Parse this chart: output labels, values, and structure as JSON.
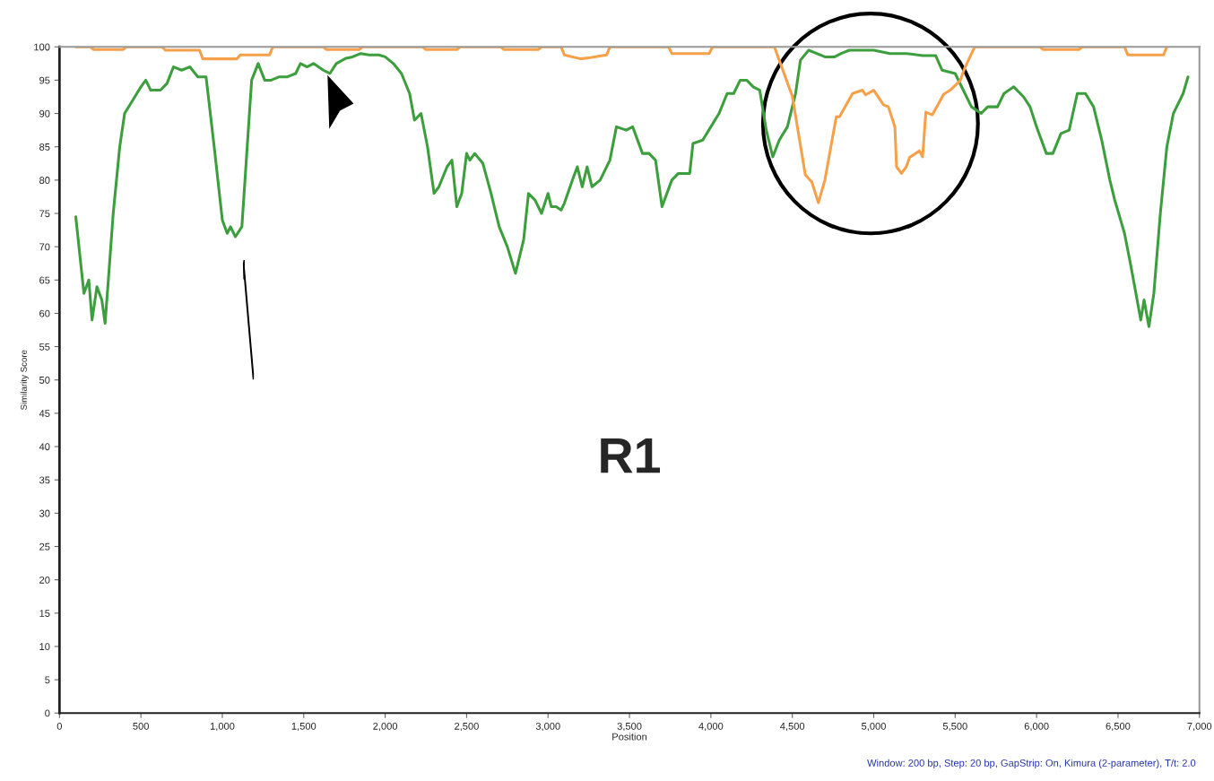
{
  "chart_data": {
    "type": "line",
    "xlabel": "Position",
    "ylabel": "Similarity Score",
    "xlim": [
      0,
      7000
    ],
    "ylim": [
      0,
      100
    ],
    "xticks": [
      0,
      500,
      {
        "value": 1000,
        "label": "1,000"
      },
      {
        "value": 1500,
        "label": "1,500"
      },
      {
        "value": 2000,
        "label": "2,000"
      },
      {
        "value": 2500,
        "label": "2,500"
      },
      {
        "value": 3000,
        "label": "3,000"
      },
      {
        "value": 3500,
        "label": "3,500"
      },
      {
        "value": 4000,
        "label": "4,000"
      },
      {
        "value": 4500,
        "label": "4,500"
      },
      {
        "value": 5000,
        "label": "5,000"
      },
      {
        "value": 5500,
        "label": "5,500"
      },
      {
        "value": 6000,
        "label": "6,000"
      },
      {
        "value": 6500,
        "label": "6,500"
      },
      {
        "value": 7000,
        "label": "7,000"
      }
    ],
    "yticks": [
      0,
      5,
      10,
      15,
      20,
      25,
      30,
      35,
      40,
      45,
      50,
      55,
      60,
      65,
      70,
      75,
      80,
      85,
      90,
      95,
      100
    ],
    "grid": false,
    "legend": false,
    "marker": "none",
    "line_style": "solid",
    "series": [
      {
        "color": "#3d9e3d",
        "x": [
          100,
          150,
          180,
          200,
          230,
          260,
          280,
          300,
          330,
          370,
          400,
          450,
          500,
          530,
          560,
          620,
          660,
          700,
          750,
          800,
          850,
          900,
          950,
          1000,
          1030,
          1050,
          1080,
          1120,
          1150,
          1180,
          1220,
          1260,
          1300,
          1350,
          1400,
          1450,
          1480,
          1520,
          1560,
          1620,
          1660,
          1700,
          1760,
          1800,
          1850,
          1900,
          1960,
          2000,
          2050,
          2100,
          2150,
          2180,
          2220,
          2260,
          2300,
          2330,
          2380,
          2410,
          2440,
          2470,
          2500,
          2520,
          2550,
          2600,
          2650,
          2700,
          2750,
          2800,
          2850,
          2880,
          2920,
          2960,
          3000,
          3020,
          3050,
          3080,
          3100,
          3150,
          3180,
          3210,
          3240,
          3270,
          3320,
          3380,
          3420,
          3480,
          3520,
          3580,
          3620,
          3660,
          3700,
          3760,
          3800,
          3870,
          3890,
          3950,
          4000,
          4050,
          4100,
          4140,
          4180,
          4220,
          4260,
          4300,
          4340,
          4380,
          4420,
          4470,
          4520,
          4550,
          4600,
          4650,
          4700,
          4760,
          4800,
          4850,
          4900,
          4960,
          5000,
          5100,
          5200,
          5300,
          5380,
          5420,
          5500,
          5560,
          5600,
          5660,
          5700,
          5760,
          5800,
          5860,
          5920,
          5960,
          6000,
          6060,
          6100,
          6150,
          6200,
          6250,
          6300,
          6350,
          6400,
          6450,
          6480,
          6540,
          6580,
          6610,
          6640,
          6660,
          6690,
          6720,
          6760,
          6800,
          6840,
          6900,
          6930
        ],
        "values": [
          74.5,
          63,
          65,
          59,
          64,
          62,
          58.5,
          65,
          75,
          85,
          90,
          92,
          94,
          95,
          93.5,
          93.5,
          94.5,
          97,
          96.5,
          97,
          95.5,
          95.5,
          85,
          74,
          72,
          73,
          71.5,
          73,
          84,
          95,
          97.5,
          95,
          95,
          95.5,
          95.5,
          96,
          97.5,
          97,
          97.5,
          96.5,
          96,
          97.5,
          98.3,
          98.5,
          99,
          98.8,
          98.8,
          98.5,
          97.5,
          96,
          93,
          89,
          90,
          85,
          78,
          79,
          82,
          83,
          76,
          78,
          84,
          83,
          84,
          82.5,
          78,
          73,
          70,
          66,
          71,
          78,
          77,
          75,
          78,
          76,
          76,
          75.5,
          76.5,
          80,
          82,
          79,
          82,
          79,
          80,
          83,
          88,
          87.5,
          88,
          84,
          84,
          83,
          76,
          80,
          81,
          81,
          85.5,
          86,
          88,
          90,
          93,
          93,
          95,
          95,
          94,
          93.5,
          87.5,
          83.5,
          86,
          88,
          93,
          98,
          99.5,
          99,
          98.5,
          98.5,
          99,
          99.5,
          99.5,
          99.5,
          99.5,
          99,
          99,
          98.7,
          98.7,
          96.5,
          96,
          93,
          91,
          90,
          91,
          91,
          93,
          94,
          92.5,
          91,
          88,
          84,
          84,
          87,
          87.5,
          93,
          93,
          91,
          86,
          80,
          77,
          72,
          67,
          63,
          59,
          62,
          58,
          63,
          75,
          85,
          90,
          93,
          95.5
        ]
      },
      {
        "color": "#f7a04a",
        "x": [
          100,
          190,
          210,
          390,
          410,
          630,
          650,
          860,
          880,
          1090,
          1110,
          1290,
          1310,
          1620,
          1640,
          1840,
          1860,
          2230,
          2250,
          2440,
          2460,
          2710,
          2730,
          2940,
          2960,
          3080,
          3100,
          3200,
          3260,
          3360,
          3380,
          3740,
          3760,
          3990,
          4010,
          4390,
          4500,
          4580,
          4620,
          4660,
          4700,
          4770,
          4790,
          4870,
          4930,
          4950,
          5000,
          5060,
          5090,
          5130,
          5140,
          5170,
          5200,
          5220,
          5280,
          5300,
          5320,
          5360,
          5430,
          5470,
          5530,
          5560,
          5620,
          6020,
          6040,
          6260,
          6280,
          6540,
          6560,
          6780,
          6800
        ],
        "values": [
          100,
          100,
          99.6,
          99.6,
          100,
          100,
          99.5,
          99.5,
          98.2,
          98.2,
          98.8,
          98.8,
          100,
          100,
          99.6,
          99.6,
          100,
          100,
          99.6,
          99.6,
          100,
          100,
          99.6,
          99.6,
          100,
          100,
          98.8,
          98.2,
          98.4,
          98.8,
          100,
          100,
          99,
          99,
          100,
          100,
          92.6,
          80.8,
          79.7,
          76.6,
          80,
          89.5,
          89.5,
          93,
          93.5,
          92.8,
          93.5,
          91.3,
          91,
          88,
          82,
          81,
          82,
          83.4,
          84.4,
          83.5,
          90.2,
          89.8,
          92.9,
          93.5,
          94.9,
          96.9,
          100,
          100,
          99.6,
          99.6,
          100,
          100,
          98.8,
          98.8,
          100
        ]
      }
    ],
    "annotations": [
      "R1",
      "Window: 200 bp, Step: 20 bp, GapStrip: On, Kimura (2-parameter), T/t: 2.0"
    ]
  }
}
